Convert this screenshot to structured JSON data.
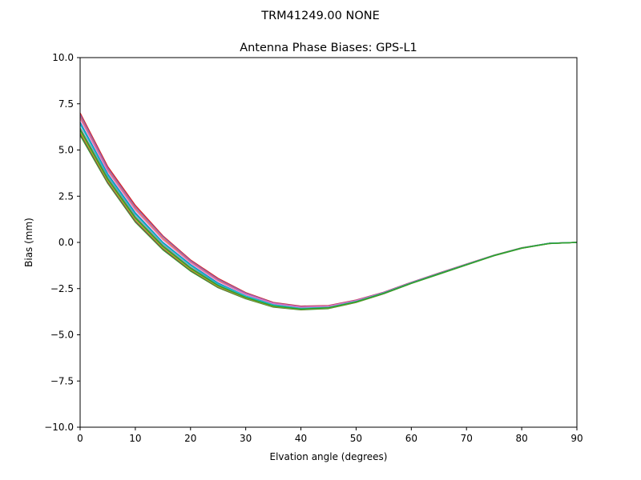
{
  "suptitle": "TRM41249.00      NONE",
  "chart_data": {
    "type": "line",
    "title": "Antenna Phase Biases: GPS-L1",
    "xlabel": "Elvation angle (degrees)",
    "ylabel": "Bias (mm)",
    "xlim": [
      0,
      90
    ],
    "ylim": [
      -10,
      10
    ],
    "x_ticks": [
      "0",
      "10",
      "20",
      "30",
      "40",
      "50",
      "60",
      "70",
      "80",
      "90"
    ],
    "y_ticks": [
      "10.0",
      "7.5",
      "5.0",
      "2.5",
      "0.0",
      "−2.5",
      "−5.0",
      "−7.5",
      "−10.0"
    ],
    "grid": false,
    "x": [
      0,
      5,
      10,
      15,
      20,
      25,
      30,
      35,
      40,
      45,
      50,
      55,
      60,
      65,
      70,
      75,
      80,
      85,
      90
    ],
    "series": [
      {
        "color": "#1f77b4",
        "values": [
          6.5,
          3.7,
          1.6,
          0.0,
          -1.2,
          -2.2,
          -2.9,
          -3.35,
          -3.55,
          -3.5,
          -3.2,
          -2.75,
          -2.2,
          -1.7,
          -1.2,
          -0.7,
          -0.3,
          -0.05,
          0.0
        ]
      },
      {
        "color": "#ff7f0e",
        "values": [
          6.8,
          3.9,
          1.8,
          0.2,
          -1.05,
          -2.05,
          -2.8,
          -3.3,
          -3.5,
          -3.45,
          -3.15,
          -2.72,
          -2.18,
          -1.68,
          -1.18,
          -0.7,
          -0.3,
          -0.05,
          0.0
        ]
      },
      {
        "color": "#2ca02c",
        "values": [
          5.8,
          3.2,
          1.1,
          -0.4,
          -1.55,
          -2.45,
          -3.05,
          -3.5,
          -3.65,
          -3.58,
          -3.25,
          -2.78,
          -2.22,
          -1.72,
          -1.22,
          -0.72,
          -0.32,
          -0.06,
          0.0
        ]
      },
      {
        "color": "#d62728",
        "values": [
          7.0,
          4.1,
          2.0,
          0.35,
          -0.95,
          -1.95,
          -2.72,
          -3.25,
          -3.45,
          -3.42,
          -3.12,
          -2.7,
          -2.16,
          -1.66,
          -1.17,
          -0.69,
          -0.29,
          -0.05,
          0.0
        ]
      },
      {
        "color": "#9467bd",
        "values": [
          6.9,
          4.0,
          1.9,
          0.3,
          -1.0,
          -2.0,
          -2.75,
          -3.28,
          -3.48,
          -3.44,
          -3.14,
          -2.71,
          -2.17,
          -1.67,
          -1.18,
          -0.7,
          -0.3,
          -0.05,
          0.0
        ]
      },
      {
        "color": "#8c564b",
        "values": [
          5.9,
          3.25,
          1.15,
          -0.35,
          -1.5,
          -2.42,
          -3.02,
          -3.48,
          -3.63,
          -3.56,
          -3.24,
          -2.77,
          -2.21,
          -1.71,
          -1.21,
          -0.71,
          -0.31,
          -0.06,
          0.0
        ]
      },
      {
        "color": "#e377c2",
        "values": [
          6.7,
          3.85,
          1.75,
          0.15,
          -1.1,
          -2.1,
          -2.82,
          -3.31,
          -3.51,
          -3.46,
          -3.16,
          -2.73,
          -2.19,
          -1.69,
          -1.19,
          -0.7,
          -0.3,
          -0.05,
          0.0
        ]
      },
      {
        "color": "#7f7f7f",
        "values": [
          6.2,
          3.5,
          1.4,
          -0.15,
          -1.35,
          -2.3,
          -2.95,
          -3.42,
          -3.6,
          -3.53,
          -3.21,
          -2.75,
          -2.2,
          -1.7,
          -1.2,
          -0.71,
          -0.31,
          -0.05,
          0.0
        ]
      },
      {
        "color": "#bcbd22",
        "values": [
          6.0,
          3.35,
          1.25,
          -0.28,
          -1.45,
          -2.38,
          -3.0,
          -3.46,
          -3.62,
          -3.55,
          -3.23,
          -2.76,
          -2.21,
          -1.71,
          -1.21,
          -0.71,
          -0.31,
          -0.06,
          0.0
        ]
      },
      {
        "color": "#17becf",
        "values": [
          6.4,
          3.62,
          1.52,
          -0.05,
          -1.25,
          -2.25,
          -2.9,
          -3.38,
          -3.57,
          -3.52,
          -3.2,
          -2.74,
          -2.2,
          -1.7,
          -1.2,
          -0.7,
          -0.3,
          -0.05,
          0.0
        ]
      },
      {
        "color": "#2ca02c",
        "values": [
          6.1,
          3.42,
          1.32,
          -0.22,
          -1.4,
          -2.34,
          -2.98,
          -3.44,
          -3.61,
          -3.54,
          -3.22,
          -2.76,
          -2.21,
          -1.71,
          -1.21,
          -0.71,
          -0.31,
          -0.06,
          0.0
        ]
      }
    ]
  }
}
